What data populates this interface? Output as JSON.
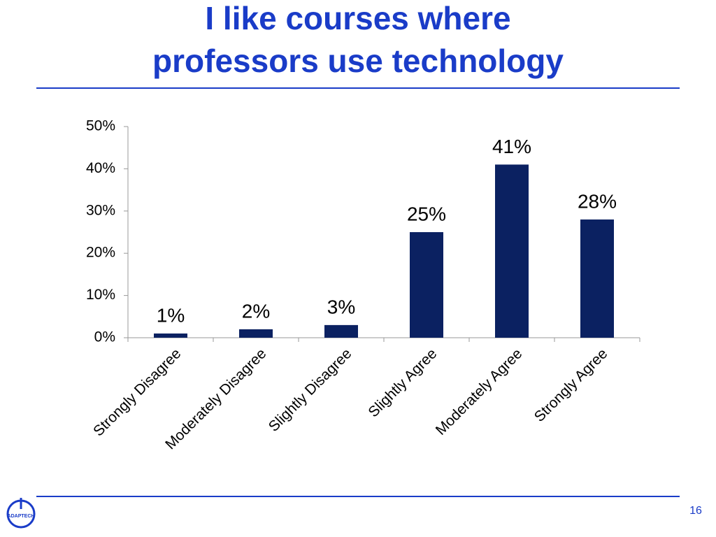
{
  "chart_data": {
    "type": "bar",
    "title": [
      "I like courses where",
      "professors use technology"
    ],
    "categories": [
      "Strongly Disagree",
      "Moderately Disagree",
      "Slightly Disagree",
      "Slightly Agree",
      "Moderately Agree",
      "Strongly Agree"
    ],
    "values": [
      1,
      2,
      3,
      25,
      41,
      28
    ],
    "value_labels": [
      "1%",
      "2%",
      "3%",
      "25%",
      "41%",
      "28%"
    ],
    "color": "#0b2161",
    "ylim": [
      0,
      50
    ],
    "yticks": [
      {
        "value": 0,
        "label": "0%"
      },
      {
        "value": 10,
        "label": "10%"
      },
      {
        "value": 20,
        "label": "20%"
      },
      {
        "value": 30,
        "label": "30%"
      },
      {
        "value": 40,
        "label": "40%"
      },
      {
        "value": 50,
        "label": "50%"
      }
    ],
    "grid": false
  },
  "slide_number": 16,
  "logo_text": "ADAPTECH"
}
